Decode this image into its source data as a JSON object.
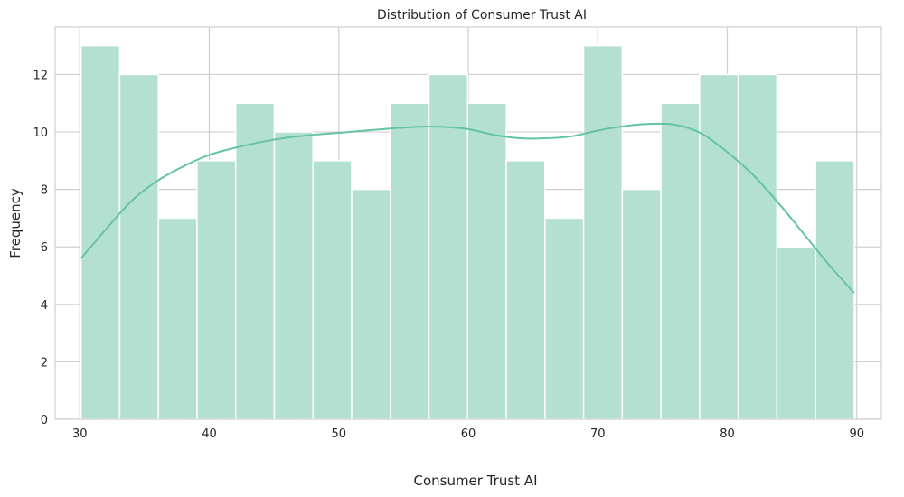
{
  "chart_data": {
    "type": "bar",
    "title": "Distribution of Consumer Trust AI",
    "xlabel": "Consumer Trust AI",
    "ylabel": "Frequency",
    "xlim": [
      28.1,
      91.9
    ],
    "ylim": [
      0,
      13.65
    ],
    "xticks": [
      30,
      40,
      50,
      60,
      70,
      80,
      90
    ],
    "yticks": [
      0,
      2,
      4,
      6,
      8,
      10,
      12
    ],
    "grid": true,
    "bins": {
      "start": 30.1,
      "width": 2.985,
      "counts": [
        13,
        12,
        7,
        9,
        11,
        10,
        9,
        8,
        11,
        12,
        11,
        9,
        7,
        13,
        8,
        11,
        12,
        12,
        6,
        9
      ]
    },
    "kde": {
      "x": [
        30.1,
        32,
        34,
        36,
        38,
        40,
        42,
        44,
        46,
        48,
        50,
        52,
        54,
        56,
        58,
        60,
        62,
        64,
        66,
        68,
        70,
        72,
        74,
        76,
        78,
        80,
        82,
        84,
        86,
        88,
        89.8
      ],
      "y": [
        5.6,
        6.6,
        7.6,
        8.3,
        8.8,
        9.2,
        9.45,
        9.65,
        9.8,
        9.9,
        9.97,
        10.05,
        10.12,
        10.18,
        10.18,
        10.1,
        9.9,
        9.78,
        9.78,
        9.85,
        10.05,
        10.2,
        10.28,
        10.25,
        9.95,
        9.3,
        8.5,
        7.5,
        6.4,
        5.3,
        4.4
      ]
    },
    "colors": {
      "bar": "#b3e0d1",
      "line": "#66c2a5"
    }
  }
}
